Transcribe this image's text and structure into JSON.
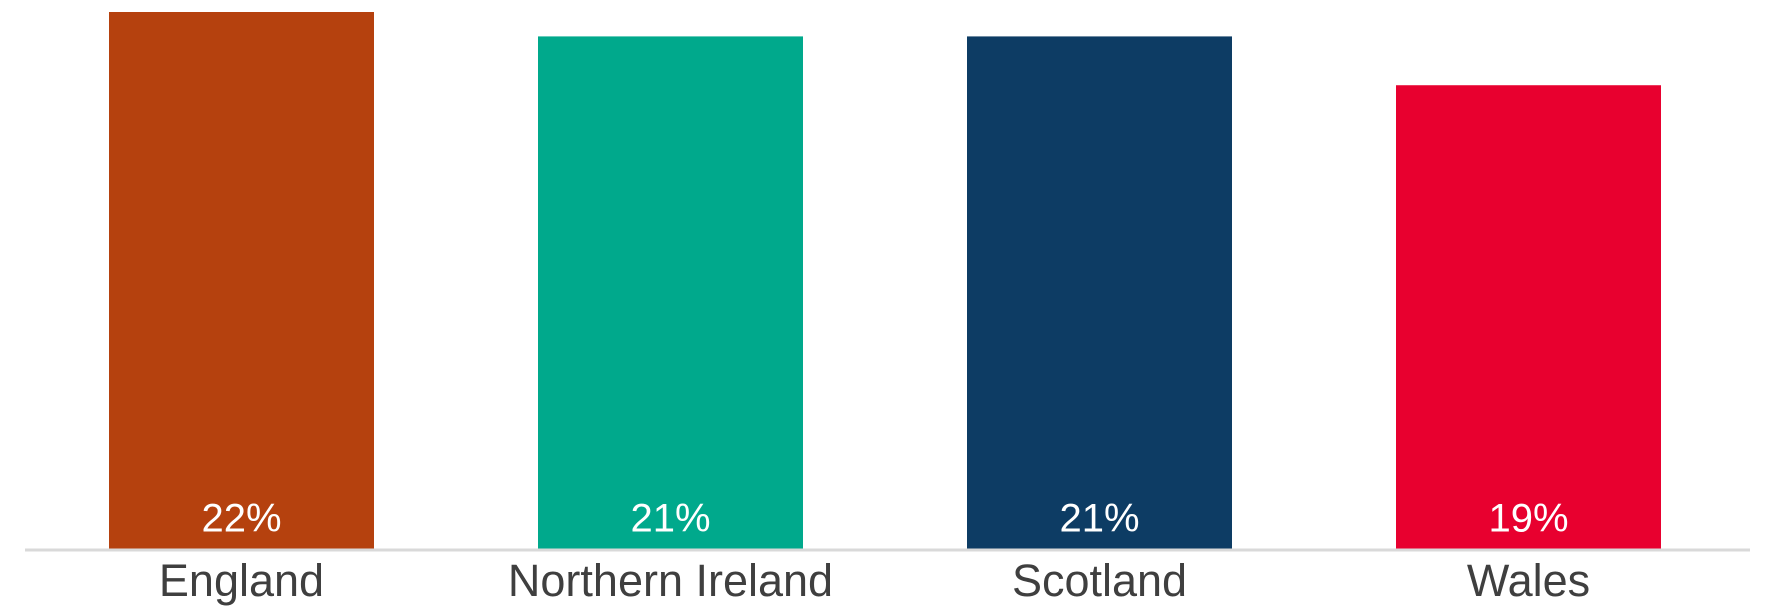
{
  "chart_data": {
    "type": "bar",
    "categories": [
      "England",
      "Northern Ireland",
      "Scotland",
      "Wales"
    ],
    "values": [
      22,
      21,
      21,
      19
    ],
    "value_labels": [
      "22%",
      "21%",
      "21%",
      "19%"
    ],
    "colors": [
      "#b5410e",
      "#00a98c",
      "#0d3c64",
      "#e8002f"
    ]
  }
}
